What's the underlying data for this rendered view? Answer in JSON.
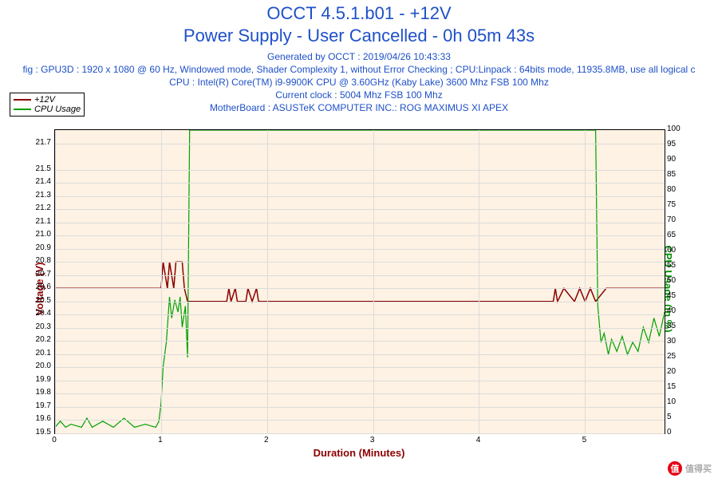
{
  "header": {
    "title1": "OCCT 4.5.1.b01 - +12V",
    "title2": "Power Supply - User Cancelled - 0h 05m 43s",
    "generated": "Generated by OCCT : 2019/04/26 10:43:33",
    "config": "fig : GPU3D : 1920 x 1080 @ 60 Hz, Windowed mode, Shader Complexity 1, without Error Checking ; CPU:Linpack : 64bits mode, 11935.8MB, use all logical c",
    "cpu": "CPU : Intel(R) Core(TM) i9-9900K CPU @ 3.60GHz (Kaby Lake) 3600 Mhz FSB 100 Mhz",
    "clock": "Current clock : 5004 Mhz FSB 100 Mhz",
    "mobo": "MotherBoard : ASUSTeK COMPUTER INC.: ROG MAXIMUS XI APEX"
  },
  "legend": {
    "s1_label": "+12V",
    "s1_color": "#8b0000",
    "s2_label": "CPU Usage",
    "s2_color": "#00a000"
  },
  "chart": {
    "type": "line",
    "background_color": "#fdf2e3",
    "grid_color": "#dcdcdc",
    "x": {
      "label": "Duration (Minutes)",
      "min": 0,
      "max": 5.75,
      "ticks": [
        0,
        1,
        2,
        3,
        4,
        5
      ],
      "label_color": "#8b0000",
      "label_fontsize": 13,
      "tick_fontsize": 10
    },
    "y_left": {
      "label": "Voltage (V)",
      "min": 19.5,
      "max": 21.8,
      "ticks": [
        19.5,
        19.6,
        19.7,
        19.8,
        19.9,
        20.0,
        20.1,
        20.2,
        20.3,
        20.4,
        20.5,
        20.6,
        20.7,
        20.8,
        20.9,
        21.0,
        21.1,
        21.2,
        21.3,
        21.4,
        21.5,
        21.7
      ],
      "label_color": "#8b0000",
      "label_fontsize": 13
    },
    "y_right": {
      "label": "CPU Usage (in %)",
      "min": 0,
      "max": 100,
      "ticks": [
        0,
        5,
        10,
        15,
        20,
        25,
        30,
        35,
        40,
        45,
        50,
        55,
        60,
        65,
        70,
        75,
        80,
        85,
        90,
        95,
        100
      ],
      "label_color": "#009000",
      "label_fontsize": 13
    },
    "series": [
      {
        "name": "+12V",
        "color": "#8b0000",
        "line_width": 1.5,
        "axis": "left",
        "data": [
          [
            0,
            20.6
          ],
          [
            1.0,
            20.6
          ],
          [
            1.02,
            20.8
          ],
          [
            1.06,
            20.6
          ],
          [
            1.08,
            20.8
          ],
          [
            1.12,
            20.6
          ],
          [
            1.14,
            20.8
          ],
          [
            1.2,
            20.8
          ],
          [
            1.22,
            20.6
          ],
          [
            1.25,
            20.5
          ],
          [
            1.62,
            20.5
          ],
          [
            1.64,
            20.6
          ],
          [
            1.66,
            20.5
          ],
          [
            1.7,
            20.6
          ],
          [
            1.72,
            20.5
          ],
          [
            1.8,
            20.5
          ],
          [
            1.82,
            20.6
          ],
          [
            1.86,
            20.5
          ],
          [
            1.9,
            20.6
          ],
          [
            1.92,
            20.5
          ],
          [
            4.7,
            20.5
          ],
          [
            4.72,
            20.6
          ],
          [
            4.74,
            20.5
          ],
          [
            4.8,
            20.6
          ],
          [
            4.9,
            20.5
          ],
          [
            4.95,
            20.6
          ],
          [
            5.0,
            20.5
          ],
          [
            5.05,
            20.6
          ],
          [
            5.1,
            20.5
          ],
          [
            5.2,
            20.6
          ],
          [
            5.75,
            20.6
          ]
        ]
      },
      {
        "name": "CPU Usage",
        "color": "#00a000",
        "line_width": 1.2,
        "axis": "right",
        "data": [
          [
            0,
            2
          ],
          [
            0.05,
            4
          ],
          [
            0.1,
            2
          ],
          [
            0.15,
            3
          ],
          [
            0.25,
            2
          ],
          [
            0.3,
            5
          ],
          [
            0.35,
            2
          ],
          [
            0.45,
            4
          ],
          [
            0.55,
            2
          ],
          [
            0.65,
            5
          ],
          [
            0.75,
            2
          ],
          [
            0.85,
            3
          ],
          [
            0.95,
            2
          ],
          [
            0.98,
            4
          ],
          [
            1.0,
            10
          ],
          [
            1.02,
            22
          ],
          [
            1.05,
            30
          ],
          [
            1.08,
            45
          ],
          [
            1.1,
            38
          ],
          [
            1.13,
            44
          ],
          [
            1.16,
            40
          ],
          [
            1.18,
            45
          ],
          [
            1.2,
            35
          ],
          [
            1.23,
            42
          ],
          [
            1.25,
            25
          ],
          [
            1.27,
            100
          ],
          [
            5.1,
            100
          ],
          [
            5.12,
            42
          ],
          [
            5.15,
            30
          ],
          [
            5.18,
            33
          ],
          [
            5.22,
            26
          ],
          [
            5.25,
            31
          ],
          [
            5.3,
            27
          ],
          [
            5.35,
            32
          ],
          [
            5.4,
            26
          ],
          [
            5.45,
            30
          ],
          [
            5.5,
            27
          ],
          [
            5.55,
            35
          ],
          [
            5.6,
            30
          ],
          [
            5.65,
            38
          ],
          [
            5.7,
            32
          ],
          [
            5.75,
            40
          ]
        ]
      }
    ]
  },
  "watermark": {
    "text": "值得买",
    "icon": "值"
  }
}
